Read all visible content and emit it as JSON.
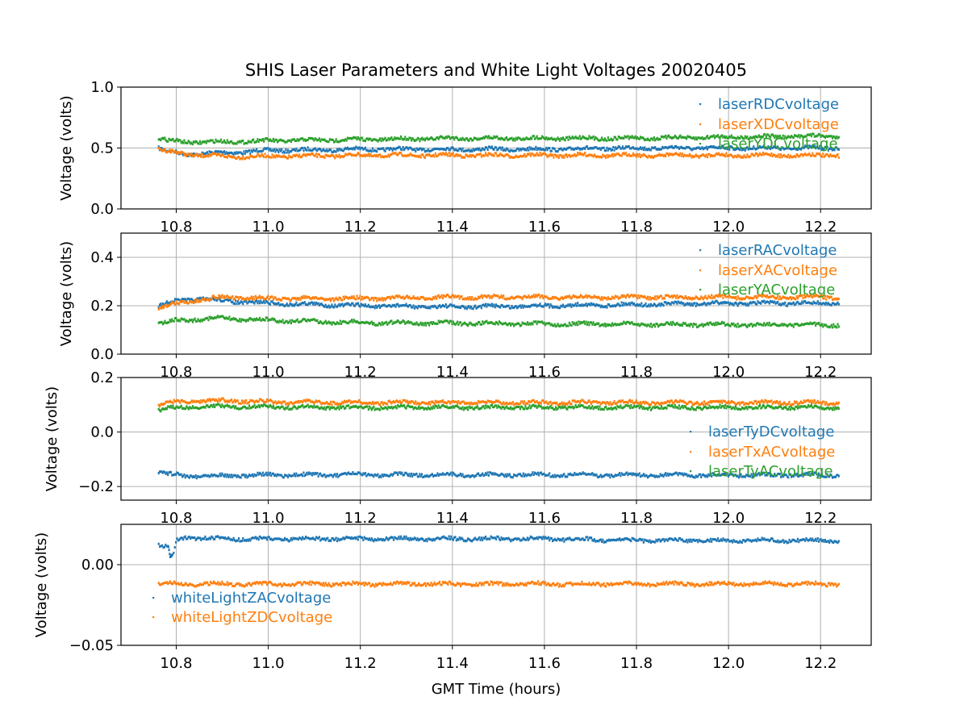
{
  "chart_data": {
    "type": "scatter",
    "title": "SHIS Laser Parameters and White Light Voltages 20020405",
    "xlabel": "GMT Time (hours)",
    "xlim": [
      10.68,
      12.31
    ],
    "xticks": [
      "10.8",
      "11.0",
      "11.2",
      "11.4",
      "11.6",
      "11.8",
      "12.0",
      "12.2"
    ],
    "colors": {
      "blue": "#1f77b4",
      "orange": "#ff7f0e",
      "green": "#2ca02c"
    },
    "grid": true,
    "panels": [
      {
        "ylabel": "Voltage (volts)",
        "ylim": [
          0.0,
          1.0
        ],
        "yticks": [
          "0.0",
          "0.5",
          "1.0"
        ],
        "legend_loc": "upper-right",
        "series": [
          {
            "name": "laserRDCvoltage",
            "color": "#1f77b4",
            "x": [
              10.76,
              10.78,
              10.82,
              10.9,
              11.0,
              11.2,
              11.4,
              11.6,
              11.8,
              12.0,
              12.24
            ],
            "y": [
              0.5,
              0.47,
              0.45,
              0.46,
              0.48,
              0.49,
              0.49,
              0.49,
              0.5,
              0.5,
              0.5
            ]
          },
          {
            "name": "laserXDCvoltage",
            "color": "#ff7f0e",
            "x": [
              10.76,
              10.78,
              10.82,
              10.9,
              11.0,
              11.2,
              11.4,
              11.6,
              11.8,
              12.0,
              12.24
            ],
            "y": [
              0.49,
              0.47,
              0.45,
              0.43,
              0.43,
              0.44,
              0.44,
              0.44,
              0.44,
              0.44,
              0.44
            ]
          },
          {
            "name": "laserYDCvoltage",
            "color": "#2ca02c",
            "x": [
              10.76,
              10.78,
              10.82,
              10.9,
              11.0,
              11.2,
              11.4,
              11.6,
              11.8,
              12.0,
              12.24
            ],
            "y": [
              0.58,
              0.56,
              0.55,
              0.55,
              0.56,
              0.57,
              0.58,
              0.58,
              0.58,
              0.59,
              0.6
            ]
          }
        ]
      },
      {
        "ylabel": "Voltage (volts)",
        "ylim": [
          0.0,
          0.5
        ],
        "yticks": [
          "0.0",
          "0.2",
          "0.4"
        ],
        "legend_loc": "upper-right",
        "series": [
          {
            "name": "laserRACvoltage",
            "color": "#1f77b4",
            "x": [
              10.76,
              10.8,
              10.85,
              10.9,
              11.0,
              11.2,
              11.4,
              11.6,
              11.8,
              12.0,
              12.24
            ],
            "y": [
              0.2,
              0.22,
              0.23,
              0.22,
              0.21,
              0.2,
              0.195,
              0.2,
              0.205,
              0.21,
              0.21
            ]
          },
          {
            "name": "laserXACvoltage",
            "color": "#ff7f0e",
            "x": [
              10.76,
              10.8,
              10.85,
              10.9,
              11.0,
              11.2,
              11.4,
              11.6,
              11.8,
              12.0,
              12.24
            ],
            "y": [
              0.19,
              0.21,
              0.225,
              0.235,
              0.23,
              0.23,
              0.235,
              0.235,
              0.235,
              0.235,
              0.235
            ]
          },
          {
            "name": "laserYACvoltage",
            "color": "#2ca02c",
            "x": [
              10.76,
              10.8,
              10.85,
              10.9,
              11.0,
              11.2,
              11.4,
              11.6,
              11.8,
              12.0,
              12.24
            ],
            "y": [
              0.125,
              0.14,
              0.145,
              0.148,
              0.14,
              0.13,
              0.128,
              0.125,
              0.123,
              0.122,
              0.12
            ]
          }
        ]
      },
      {
        "ylabel": "Voltage (volts)",
        "ylim": [
          -0.25,
          0.2
        ],
        "yticks": [
          "−0.2",
          "0.0",
          "0.2"
        ],
        "legend_loc": "center-right",
        "series": [
          {
            "name": "laserTyDCvoltage",
            "color": "#1f77b4",
            "x": [
              10.76,
              10.78,
              10.82,
              10.9,
              11.0,
              11.2,
              11.4,
              11.6,
              11.8,
              12.0,
              12.24
            ],
            "y": [
              -0.145,
              -0.155,
              -0.16,
              -0.16,
              -0.158,
              -0.157,
              -0.157,
              -0.157,
              -0.158,
              -0.158,
              -0.158
            ]
          },
          {
            "name": "laserTxACvoltage",
            "color": "#ff7f0e",
            "x": [
              10.76,
              10.8,
              10.85,
              10.9,
              11.0,
              11.2,
              11.4,
              11.6,
              11.8,
              12.0,
              12.24
            ],
            "y": [
              0.1,
              0.11,
              0.115,
              0.115,
              0.11,
              0.108,
              0.108,
              0.108,
              0.108,
              0.108,
              0.108
            ]
          },
          {
            "name": "laserTyACvoltage",
            "color": "#2ca02c",
            "x": [
              10.76,
              10.8,
              10.85,
              10.9,
              11.0,
              11.2,
              11.4,
              11.6,
              11.8,
              12.0,
              12.24
            ],
            "y": [
              0.08,
              0.09,
              0.094,
              0.094,
              0.092,
              0.09,
              0.09,
              0.09,
              0.09,
              0.09,
              0.09
            ]
          }
        ]
      },
      {
        "ylabel": "Voltage (volts)",
        "ylim": [
          -0.05,
          0.025
        ],
        "yticks": [
          "−0.05",
          "0.00"
        ],
        "legend_loc": "center-left",
        "series": [
          {
            "name": "whiteLightZACvoltage",
            "color": "#1f77b4",
            "x": [
              10.76,
              10.77,
              10.78,
              10.785,
              10.79,
              10.8,
              10.82,
              10.9,
              11.0,
              11.2,
              11.4,
              11.6,
              11.8,
              12.0,
              12.24
            ],
            "y": [
              0.012,
              0.011,
              0.011,
              0.005,
              0.005,
              0.015,
              0.017,
              0.016,
              0.016,
              0.016,
              0.016,
              0.016,
              0.015,
              0.015,
              0.015
            ]
          },
          {
            "name": "whiteLightZDCvoltage",
            "color": "#ff7f0e",
            "x": [
              10.76,
              10.8,
              10.9,
              11.0,
              11.2,
              11.4,
              11.6,
              11.8,
              12.0,
              12.24
            ],
            "y": [
              -0.012,
              -0.012,
              -0.012,
              -0.012,
              -0.012,
              -0.012,
              -0.012,
              -0.012,
              -0.012,
              -0.012
            ]
          }
        ]
      }
    ]
  }
}
